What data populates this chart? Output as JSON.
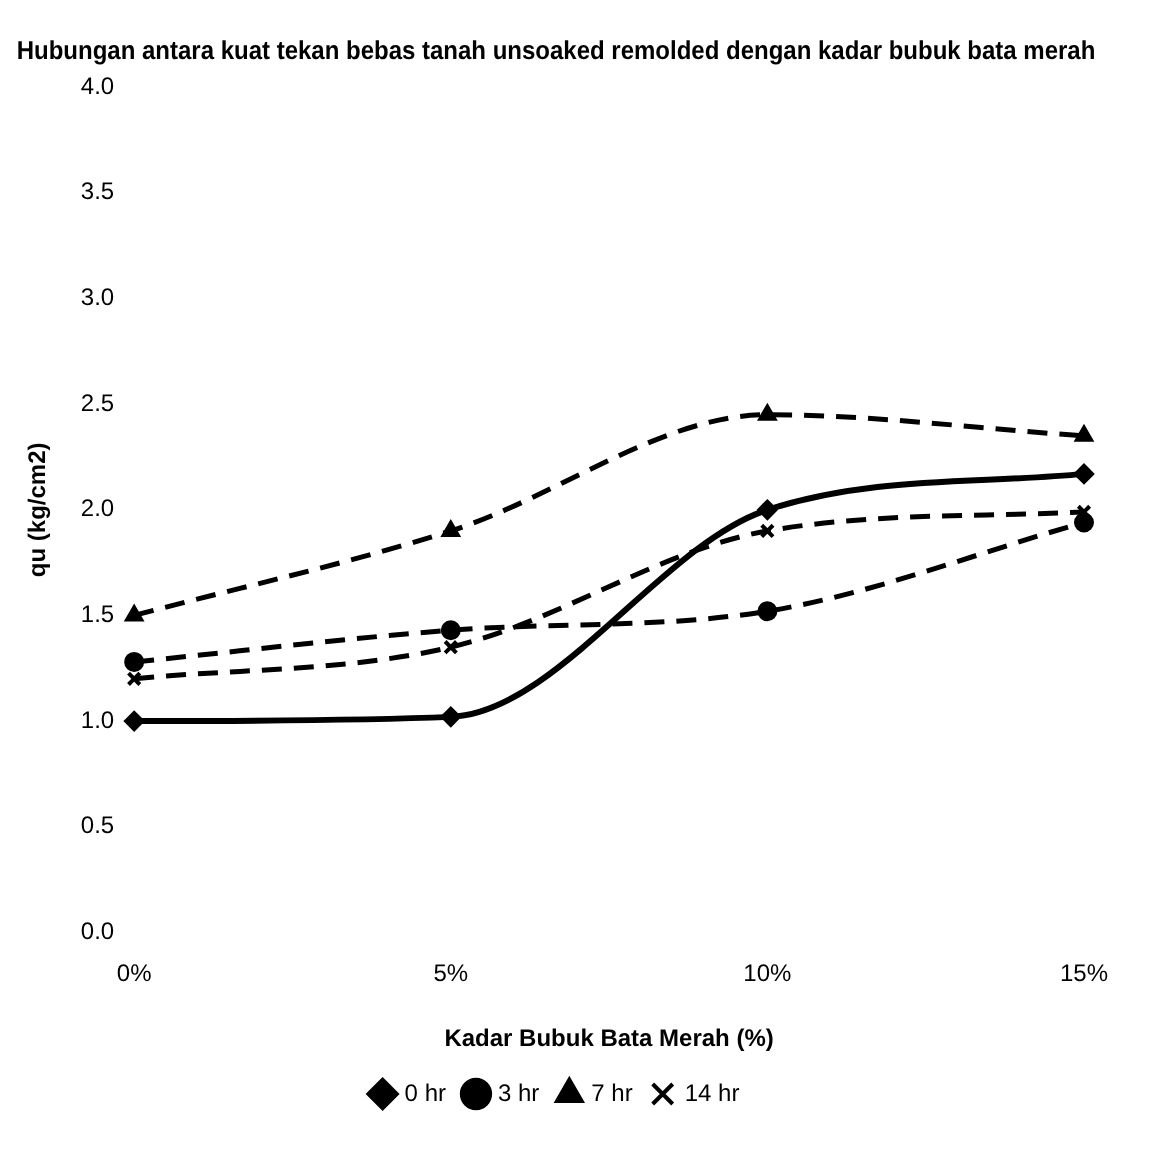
{
  "chart_data": {
    "type": "line",
    "title": "Hubungan antara kuat tekan bebas tanah unsoaked remolded dengan kadar bubuk bata merah",
    "xlabel": "Kadar Bubuk Bata Merah (%)",
    "ylabel": "qu (kg/cm2)",
    "categories": [
      "0%",
      "5%",
      "10%",
      "15%"
    ],
    "series": [
      {
        "name": "0 hr",
        "color": "#000000",
        "values": [
          1.0,
          1.02,
          2.0,
          2.17
        ],
        "line_style": "solid",
        "marker": "diamond"
      },
      {
        "name": "3 hr",
        "color": "#000000",
        "values": [
          1.28,
          1.43,
          1.52,
          1.94
        ],
        "line_style": "dashed",
        "marker": "circle"
      },
      {
        "name": "7 hr",
        "color": "#000000",
        "values": [
          1.5,
          1.9,
          2.45,
          2.35
        ],
        "line_style": "dashed",
        "marker": "triangle"
      },
      {
        "name": "14 hr",
        "color": "#000000",
        "values": [
          1.2,
          1.35,
          1.9,
          1.99
        ],
        "line_style": "dashed",
        "marker": "cross"
      }
    ],
    "ylim": [
      0,
      4
    ],
    "yticks": [
      {
        "value": 0,
        "label": "0.0"
      },
      0.5,
      {
        "value": 1,
        "label": "1.0"
      },
      1.5,
      {
        "value": 2,
        "label": "2.0"
      },
      2.5,
      {
        "value": 3,
        "label": "3.0"
      },
      3.5,
      {
        "value": 4,
        "label": "4.0"
      }
    ],
    "grid": false,
    "legend": "bottom"
  }
}
